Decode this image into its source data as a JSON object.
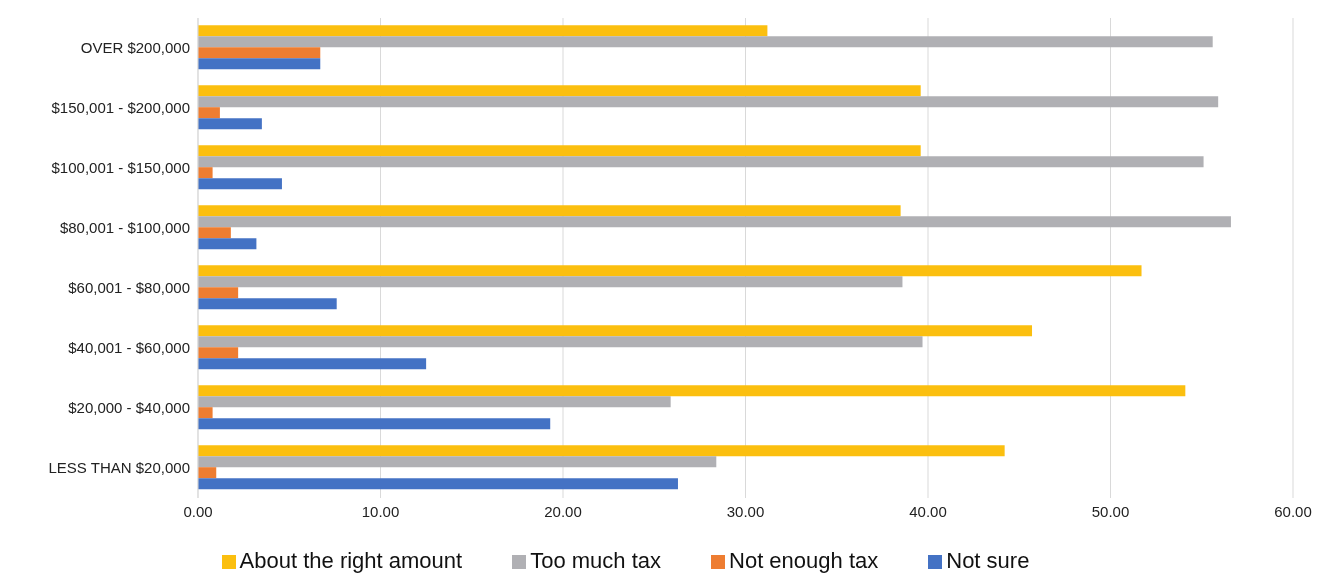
{
  "chart_data": {
    "type": "bar",
    "orientation": "horizontal",
    "categories": [
      "OVER $200,000",
      "$150,001 - $200,000",
      "$100,001 - $150,000",
      "$80,001 - $100,000",
      "$60,001 - $80,000",
      "$40,001 - $60,000",
      "$20,000 - $40,000",
      "LESS THAN $20,000"
    ],
    "series": [
      {
        "name": "About the right amount",
        "color": "#fbbf0f",
        "values": [
          31.2,
          39.6,
          39.6,
          38.5,
          51.7,
          45.7,
          54.1,
          44.2
        ]
      },
      {
        "name": "Too much tax",
        "color": "#b0b0b4",
        "values": [
          55.6,
          55.9,
          55.1,
          56.6,
          38.6,
          39.7,
          25.9,
          28.4
        ]
      },
      {
        "name": "Not enough tax",
        "color": "#ee7d31",
        "values": [
          6.7,
          1.2,
          0.8,
          1.8,
          2.2,
          2.2,
          0.8,
          1.0
        ]
      },
      {
        "name": "Not sure",
        "color": "#4472c4",
        "values": [
          6.7,
          3.5,
          4.6,
          3.2,
          7.6,
          12.5,
          19.3,
          26.3
        ]
      }
    ],
    "xlim": [
      0,
      60
    ],
    "xticks": [
      {
        "value": 0,
        "label": "0.00"
      },
      {
        "value": 10,
        "label": "10.00"
      },
      {
        "value": 20,
        "label": "20.00"
      },
      {
        "value": 30,
        "label": "30.00"
      },
      {
        "value": 40,
        "label": "40.00"
      },
      {
        "value": 50,
        "label": "50.00"
      },
      {
        "value": 60,
        "label": "60.00"
      }
    ],
    "grid": "x",
    "legend": "bottom"
  }
}
